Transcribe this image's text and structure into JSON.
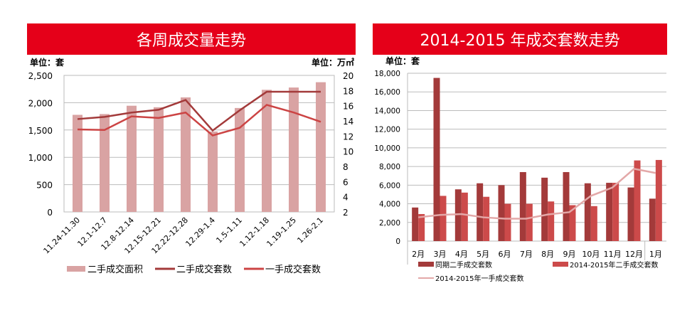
{
  "colors": {
    "title_bg": "#e50019",
    "bar_area": "#d9a3a3",
    "line_second": "#a33a3a",
    "line_first": "#cc4444",
    "bar_prev": "#a33a3a",
    "bar_cur": "#cc4a4a",
    "line_first2": "#e3a8a8"
  },
  "chart_data": [
    {
      "type": "bar+line",
      "title": "各周成交量走势",
      "unit_left": "单位：套",
      "unit_right": "单位：万㎡",
      "categories": [
        "11.24-11.30",
        "12.1-12.7",
        "12.8-12.14",
        "12.15-12.21",
        "12.22-12.28",
        "12.29-1.4",
        "1.5-1.11",
        "1.12-1.18",
        "1.19-1.25",
        "1.26-2.1"
      ],
      "ylim_left": [
        0,
        2500
      ],
      "yticks_left": [
        "0",
        "500",
        "1,000",
        "1,500",
        "2,000",
        "2,500"
      ],
      "ylim_right": [
        2,
        20
      ],
      "yticks_right": [
        "2",
        "4",
        "6",
        "8",
        "10",
        "12",
        "14",
        "16",
        "18",
        "20"
      ],
      "grid": true,
      "legend": "bottom",
      "series": [
        {
          "name": "二手成交面积",
          "type": "bar",
          "axis": "right",
          "values": [
            14.8,
            14.9,
            16.0,
            15.8,
            17.1,
            12.6,
            15.7,
            18.1,
            18.4,
            19.1
          ]
        },
        {
          "name": "二手成交套数",
          "type": "line",
          "axis": "left",
          "values": [
            1700,
            1740,
            1820,
            1870,
            2050,
            1490,
            1860,
            2200,
            2200,
            2200
          ]
        },
        {
          "name": "一手成交套数",
          "type": "line",
          "axis": "left",
          "values": [
            1510,
            1500,
            1750,
            1720,
            1820,
            1400,
            1540,
            1960,
            1820,
            1650
          ]
        }
      ]
    },
    {
      "type": "bar+line",
      "title": "2014-2015 年成交套数走势",
      "unit_left": "单位：套",
      "categories": [
        "2月",
        "3月",
        "4月",
        "5月",
        "6月",
        "7月",
        "8月",
        "9月",
        "10月",
        "11月",
        "12月",
        "1月"
      ],
      "ylim": [
        0,
        18000
      ],
      "yticks": [
        "0",
        "2,000",
        "4,000",
        "6,000",
        "8,000",
        "10,000",
        "12,000",
        "14,000",
        "16,000",
        "18,000"
      ],
      "grid": true,
      "legend": "bottom",
      "series": [
        {
          "name": "同期二手成交套数",
          "type": "bar",
          "values": [
            3600,
            17500,
            5550,
            6200,
            6000,
            7400,
            6800,
            7400,
            6200,
            6250,
            5750,
            4550
          ]
        },
        {
          "name": "2014-2015年二手成交套数",
          "type": "bar",
          "values": [
            2900,
            4850,
            5200,
            4750,
            4000,
            4000,
            4250,
            3850,
            3750,
            6250,
            8650,
            8700
          ]
        },
        {
          "name": "2014-2015年一手成交套数",
          "type": "line",
          "values": [
            2550,
            2800,
            2900,
            2550,
            2400,
            2400,
            2850,
            3100,
            4850,
            5750,
            7750,
            7300
          ]
        }
      ]
    }
  ]
}
